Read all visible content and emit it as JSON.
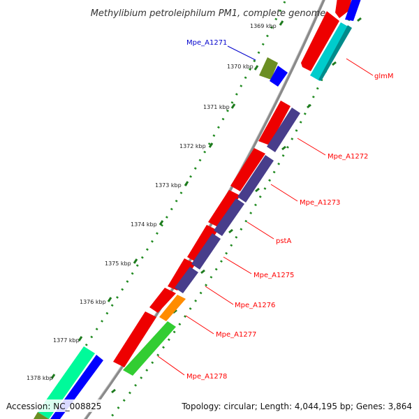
{
  "title": "Methylibium petroleiphilum PM1, complete genome",
  "footer": {
    "accession": "Accession: NC_008825",
    "topology": "Topology: circular; Length: 4,044,195 bp; Genes: 3,864"
  },
  "ticks": [
    "1369 kbp",
    "1370 kbp",
    "1371 kbp",
    "1372 kbp",
    "1373 kbp",
    "1374 kbp",
    "1375 kbp",
    "1376 kbp",
    "1377 kbp",
    "1378 kbp"
  ],
  "gene_labels": [
    "Mpe_A1271",
    "glmM",
    "Mpe_A1272",
    "Mpe_A1273",
    "pstA",
    "Mpe_A1275",
    "Mpe_A1276",
    "Mpe_A1277",
    "Mpe_A1278"
  ],
  "colors": {
    "backbone": "#888888",
    "dots": "#228b22",
    "label_red": "#ff0000",
    "label_blue": "#0000cc",
    "red": "#ee0000",
    "purple": "#483d8b",
    "cyan": "#00cccc",
    "green": "#32cd32",
    "olive": "#6b8e23",
    "orange": "#ff8c00",
    "blue": "#0000ff",
    "aquamarine": "#00fa9a"
  }
}
